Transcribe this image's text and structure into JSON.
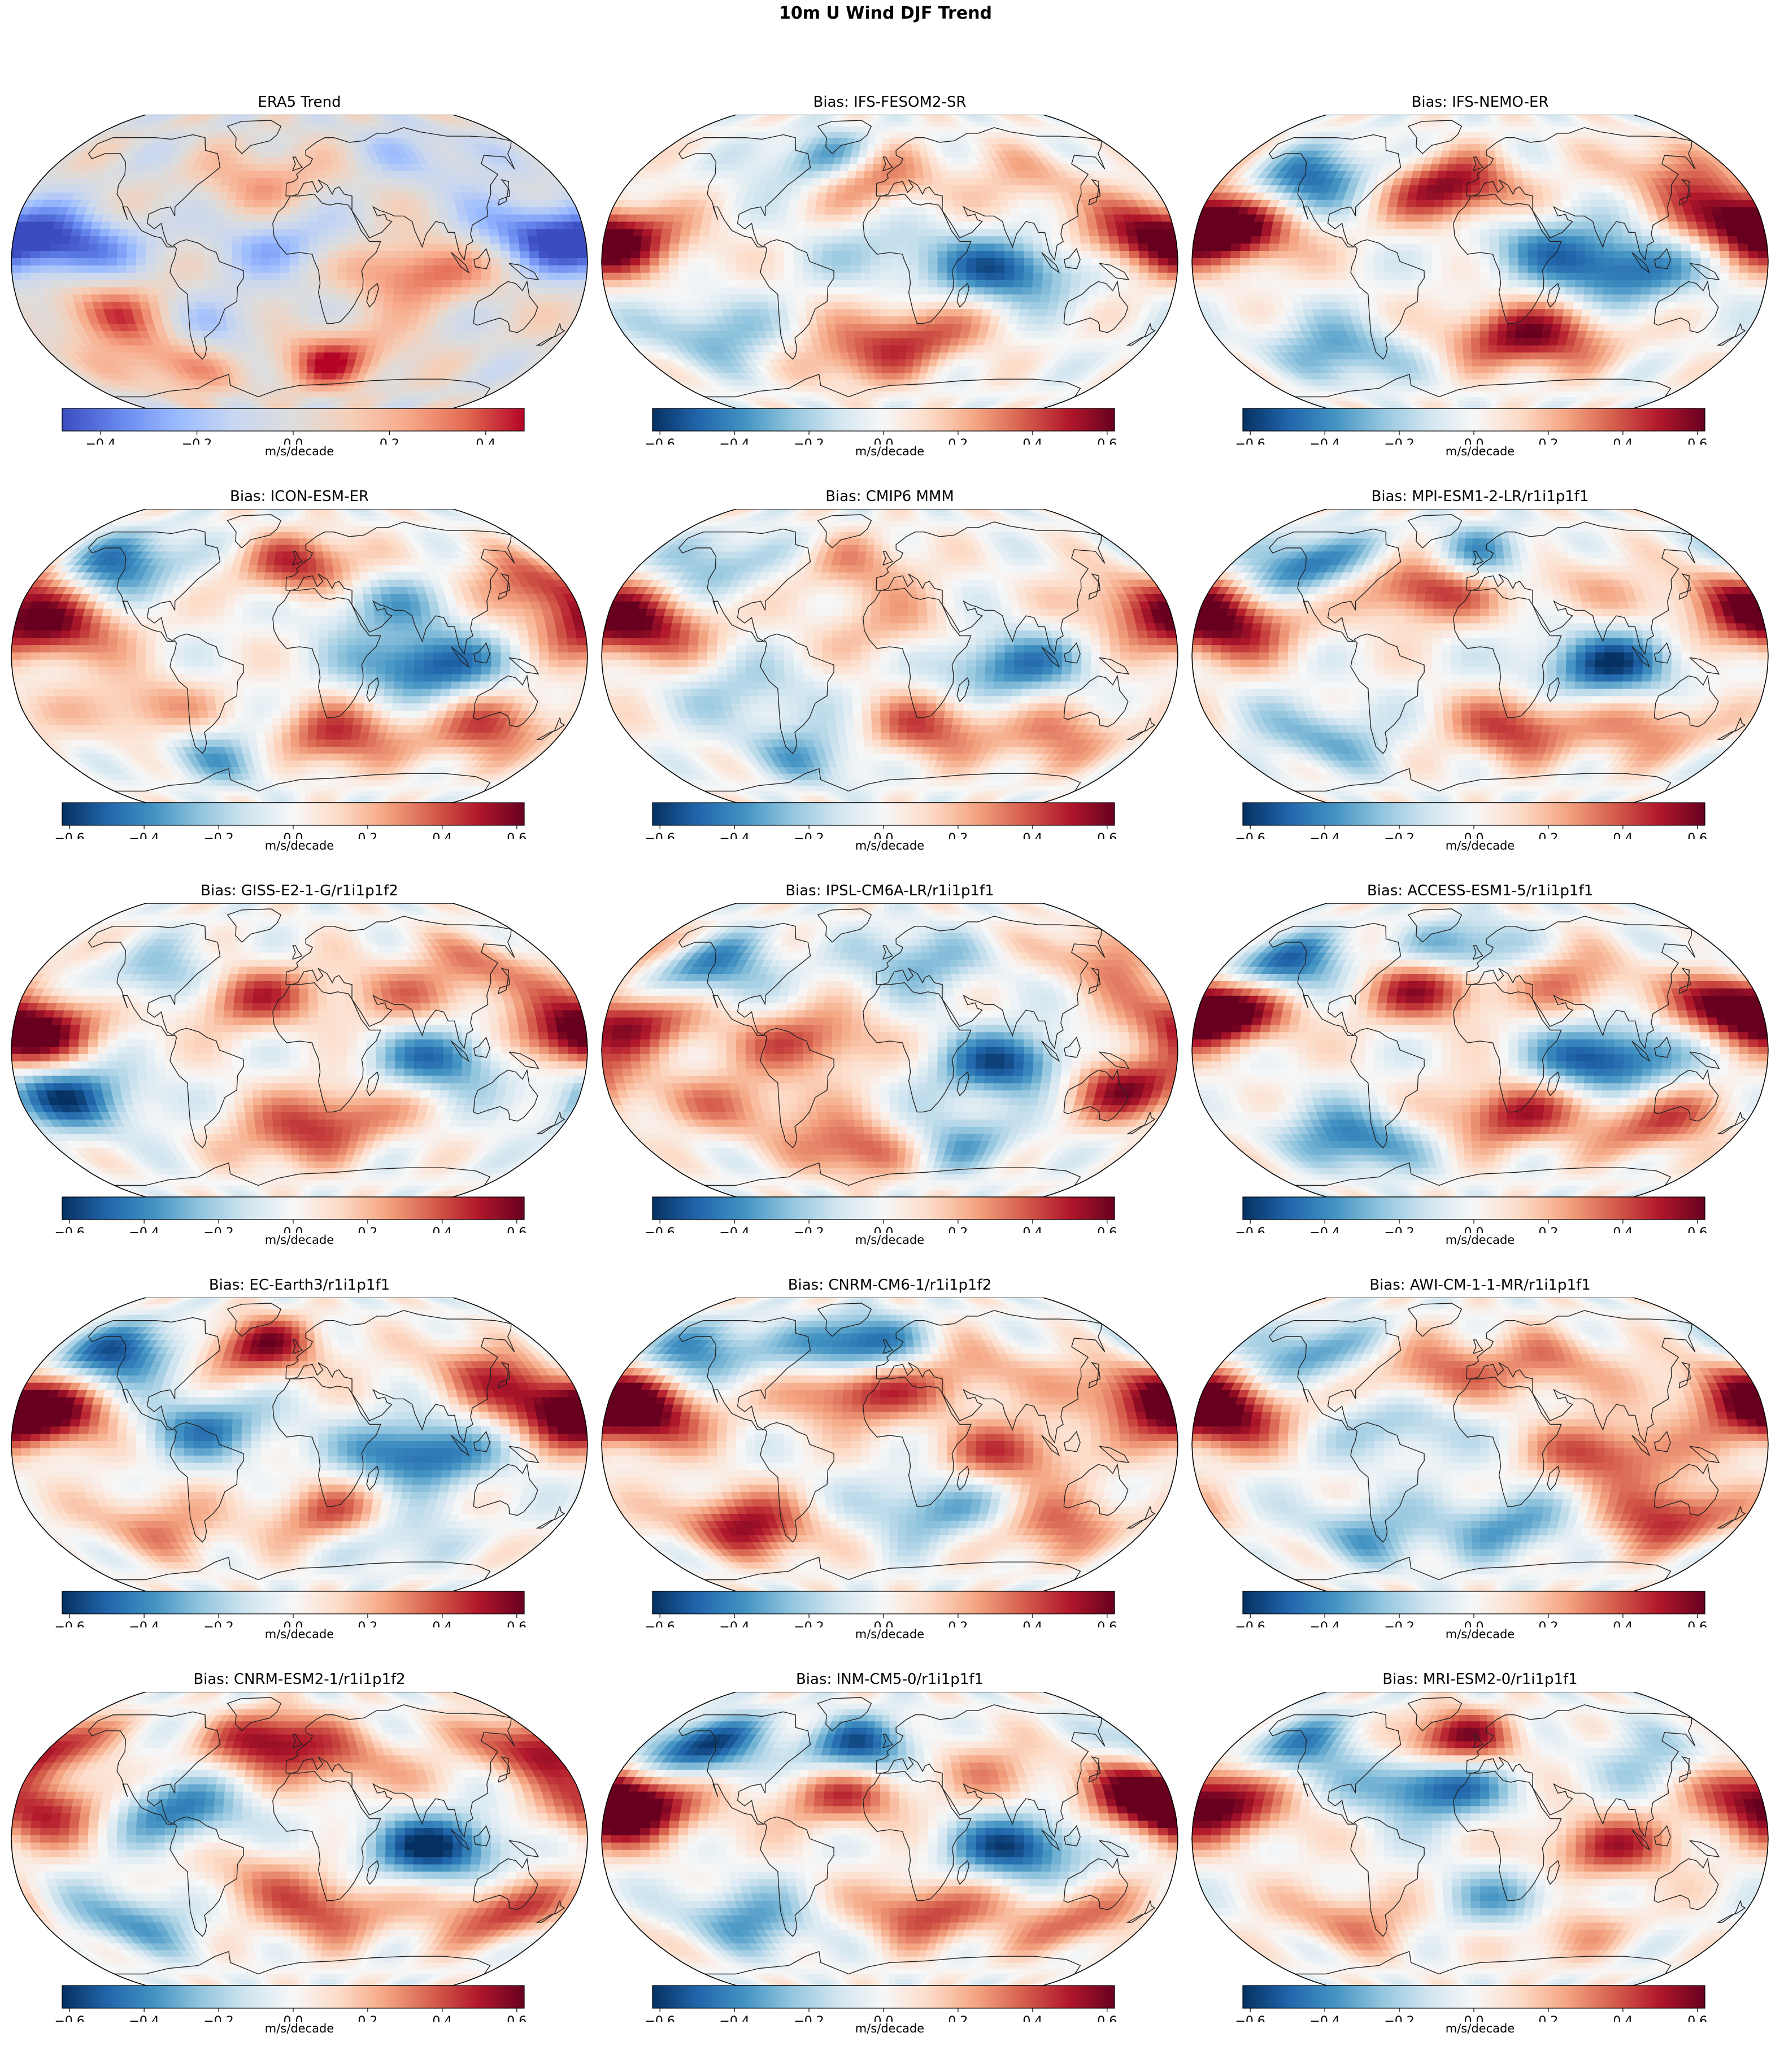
{
  "figure": {
    "title": "10m U Wind DJF Trend"
  },
  "colormaps": {
    "coolwarm": [
      "#3b4cc0",
      "#6788ee",
      "#9abbff",
      "#c9d7f0",
      "#dddddd",
      "#f6cfb8",
      "#f7a889",
      "#e26952",
      "#b40426"
    ],
    "RdBu_r": [
      "#053061",
      "#2166ac",
      "#4393c3",
      "#92c5de",
      "#d1e5f0",
      "#f7f7f7",
      "#fddbc7",
      "#f4a582",
      "#d6604d",
      "#b2182b",
      "#67001f"
    ]
  },
  "chart_data": [
    {
      "type": "heatmap",
      "title": "ERA5 Trend",
      "cmap": "coolwarm",
      "range": [
        -0.48,
        0.48
      ],
      "ticks": [
        -0.4,
        -0.2,
        0.0,
        0.2,
        0.4
      ],
      "tick_labels": [
        "−0.4",
        "−0.2",
        "0.0",
        "0.2",
        "0.4"
      ],
      "colorbar_label": "m/s/decade",
      "projection": "Robinson",
      "coastlines": true,
      "blobs": [
        [
          -150,
          8,
          -0.45
        ],
        [
          155,
          15,
          -0.42
        ],
        [
          -120,
          -28,
          0.35
        ],
        [
          25,
          -55,
          0.42
        ],
        [
          -100,
          -58,
          0.3
        ],
        [
          75,
          -5,
          0.4
        ],
        [
          -25,
          45,
          0.25
        ],
        [
          -10,
          10,
          -0.22
        ],
        [
          100,
          60,
          -0.18
        ],
        [
          -60,
          -35,
          -0.2
        ]
      ]
    },
    {
      "type": "heatmap",
      "title": "Bias: IFS-FESOM2-SR",
      "cmap": "RdBu_r",
      "range": [
        -0.62,
        0.62
      ],
      "ticks": [
        -0.6,
        -0.4,
        -0.2,
        0.0,
        0.2,
        0.4,
        0.6
      ],
      "tick_labels": [
        "−0.6",
        "−0.4",
        "−0.2",
        "0.0",
        "0.2",
        "0.4",
        "0.6"
      ],
      "colorbar_label": "m/s/decade",
      "projection": "Robinson",
      "coastlines": true,
      "blobs": [
        [
          -20,
          48,
          0.55
        ],
        [
          -45,
          55,
          -0.55
        ],
        [
          -170,
          10,
          0.5
        ],
        [
          75,
          -5,
          -0.5
        ],
        [
          20,
          -40,
          0.4
        ],
        [
          160,
          15,
          0.35
        ],
        [
          -120,
          -40,
          -0.3
        ],
        [
          -30,
          -55,
          0.3
        ],
        [
          100,
          45,
          0.2
        ],
        [
          0,
          5,
          -0.2
        ]
      ]
    },
    {
      "type": "heatmap",
      "title": "Bias: IFS-NEMO-ER",
      "cmap": "RdBu_r",
      "range": [
        -0.62,
        0.62
      ],
      "ticks": [
        -0.6,
        -0.4,
        -0.2,
        0.0,
        0.2,
        0.4,
        0.6
      ],
      "tick_labels": [
        "−0.6",
        "−0.4",
        "−0.2",
        "0.0",
        "0.2",
        "0.4",
        "0.6"
      ],
      "colorbar_label": "m/s/decade",
      "projection": "Robinson",
      "coastlines": true,
      "blobs": [
        [
          -160,
          15,
          0.62
        ],
        [
          -20,
          40,
          0.6
        ],
        [
          -120,
          45,
          -0.5
        ],
        [
          170,
          25,
          0.5
        ],
        [
          90,
          -5,
          -0.5
        ],
        [
          20,
          -40,
          0.45
        ],
        [
          140,
          50,
          0.3
        ],
        [
          -100,
          -50,
          -0.35
        ],
        [
          40,
          10,
          -0.3
        ],
        [
          60,
          -45,
          0.25
        ]
      ]
    },
    {
      "type": "heatmap",
      "title": "Bias: ICON-ESM-ER",
      "cmap": "RdBu_r",
      "range": [
        -0.62,
        0.62
      ],
      "ticks": [
        -0.6,
        -0.4,
        -0.2,
        0.0,
        0.2,
        0.4,
        0.6
      ],
      "tick_labels": [
        "−0.6",
        "−0.4",
        "−0.2",
        "0.0",
        "0.2",
        "0.4",
        "0.6"
      ],
      "colorbar_label": "m/s/decade",
      "projection": "Robinson",
      "coastlines": true,
      "blobs": [
        [
          -160,
          15,
          0.6
        ],
        [
          -135,
          50,
          -0.55
        ],
        [
          80,
          -5,
          -0.55
        ],
        [
          5,
          50,
          0.5
        ],
        [
          170,
          40,
          0.5
        ],
        [
          25,
          -45,
          0.45
        ],
        [
          130,
          -40,
          0.4
        ],
        [
          -100,
          -30,
          0.3
        ],
        [
          50,
          30,
          -0.3
        ],
        [
          -60,
          -55,
          -0.3
        ]
      ]
    },
    {
      "type": "heatmap",
      "title": "Bias: CMIP6 MMM",
      "cmap": "RdBu_r",
      "range": [
        -0.62,
        0.62
      ],
      "ticks": [
        -0.6,
        -0.4,
        -0.2,
        0.0,
        0.2,
        0.4,
        0.6
      ],
      "tick_labels": [
        "−0.6",
        "−0.4",
        "−0.2",
        "0.0",
        "0.2",
        "0.4",
        "0.6"
      ],
      "colorbar_label": "m/s/decade",
      "projection": "Robinson",
      "coastlines": true,
      "blobs": [
        [
          -160,
          15,
          0.55
        ],
        [
          75,
          -5,
          -0.45
        ],
        [
          25,
          -40,
          0.4
        ],
        [
          165,
          30,
          0.35
        ],
        [
          -130,
          50,
          -0.3
        ],
        [
          -20,
          50,
          0.25
        ],
        [
          -60,
          -55,
          -0.3
        ],
        [
          120,
          -45,
          0.3
        ],
        [
          0,
          15,
          0.2
        ],
        [
          -90,
          -20,
          -0.2
        ]
      ]
    },
    {
      "type": "heatmap",
      "title": "Bias: MPI-ESM1-2-LR/r1i1p1f1",
      "cmap": "RdBu_r",
      "range": [
        -0.62,
        0.62
      ],
      "ticks": [
        -0.6,
        -0.4,
        -0.2,
        0.0,
        0.2,
        0.4,
        0.6
      ],
      "tick_labels": [
        "−0.6",
        "−0.4",
        "−0.2",
        "0.0",
        "0.2",
        "0.4",
        "0.6"
      ],
      "colorbar_label": "m/s/decade",
      "projection": "Robinson",
      "coastlines": true,
      "blobs": [
        [
          -160,
          15,
          0.5
        ],
        [
          -35,
          38,
          0.55
        ],
        [
          -130,
          50,
          -0.5
        ],
        [
          80,
          -5,
          -0.55
        ],
        [
          25,
          -40,
          0.45
        ],
        [
          170,
          30,
          0.45
        ],
        [
          0,
          55,
          -0.4
        ],
        [
          -110,
          -45,
          -0.3
        ],
        [
          120,
          -40,
          0.3
        ],
        [
          60,
          40,
          0.2
        ]
      ]
    },
    {
      "type": "heatmap",
      "title": "Bias: GISS-E2-1-G/r1i1p1f2",
      "cmap": "RdBu_r",
      "range": [
        -0.62,
        0.62
      ],
      "ticks": [
        -0.6,
        -0.4,
        -0.2,
        0.0,
        0.2,
        0.4,
        0.6
      ],
      "tick_labels": [
        "−0.6",
        "−0.4",
        "−0.2",
        "0.0",
        "0.2",
        "0.4",
        "0.6"
      ],
      "colorbar_label": "m/s/decade",
      "projection": "Robinson",
      "coastlines": true,
      "blobs": [
        [
          -150,
          -25,
          -0.55
        ],
        [
          90,
          -5,
          -0.45
        ],
        [
          175,
          5,
          0.5
        ],
        [
          -35,
          30,
          0.45
        ],
        [
          -165,
          15,
          0.4
        ],
        [
          30,
          -35,
          0.35
        ],
        [
          -90,
          40,
          -0.3
        ],
        [
          130,
          45,
          0.3
        ],
        [
          -10,
          -50,
          0.3
        ],
        [
          60,
          30,
          0.25
        ]
      ]
    },
    {
      "type": "heatmap",
      "title": "Bias: IPSL-CM6A-LR/r1i1p1f1",
      "cmap": "RdBu_r",
      "range": [
        -0.62,
        0.62
      ],
      "ticks": [
        -0.6,
        -0.4,
        -0.2,
        0.0,
        0.2,
        0.4,
        0.6
      ],
      "tick_labels": [
        "−0.6",
        "−0.4",
        "−0.2",
        "0.0",
        "0.2",
        "0.4",
        "0.6"
      ],
      "colorbar_label": "m/s/decade",
      "projection": "Robinson",
      "coastlines": true,
      "blobs": [
        [
          -165,
          15,
          0.55
        ],
        [
          75,
          -8,
          -0.55
        ],
        [
          150,
          -20,
          0.55
        ],
        [
          -50,
          5,
          0.4
        ],
        [
          -130,
          45,
          -0.45
        ],
        [
          -25,
          -55,
          0.45
        ],
        [
          20,
          50,
          -0.3
        ],
        [
          160,
          50,
          0.35
        ],
        [
          -100,
          -30,
          0.3
        ],
        [
          50,
          -50,
          -0.3
        ]
      ]
    },
    {
      "type": "heatmap",
      "title": "Bias: ACCESS-ESM1-5/r1i1p1f1",
      "cmap": "RdBu_r",
      "range": [
        -0.62,
        0.62
      ],
      "ticks": [
        -0.6,
        -0.4,
        -0.2,
        0.0,
        0.2,
        0.4,
        0.6
      ],
      "tick_labels": [
        "−0.6",
        "−0.4",
        "−0.2",
        "0.0",
        "0.2",
        "0.4",
        "0.6"
      ],
      "colorbar_label": "m/s/decade",
      "projection": "Robinson",
      "coastlines": true,
      "blobs": [
        [
          -165,
          20,
          0.6
        ],
        [
          -35,
          35,
          0.55
        ],
        [
          -140,
          45,
          -0.55
        ],
        [
          80,
          -5,
          -0.6
        ],
        [
          20,
          -35,
          0.5
        ],
        [
          170,
          25,
          0.55
        ],
        [
          -10,
          55,
          -0.45
        ],
        [
          -90,
          -50,
          -0.45
        ],
        [
          120,
          -40,
          0.4
        ],
        [
          60,
          40,
          0.3
        ]
      ]
    },
    {
      "type": "heatmap",
      "title": "Bias: EC-Earth3/r1i1p1f1",
      "cmap": "RdBu_r",
      "range": [
        -0.62,
        0.62
      ],
      "ticks": [
        -0.6,
        -0.4,
        -0.2,
        0.0,
        0.2,
        0.4,
        0.6
      ],
      "tick_labels": [
        "−0.6",
        "−0.4",
        "−0.2",
        "0.0",
        "0.2",
        "0.4",
        "0.6"
      ],
      "colorbar_label": "m/s/decade",
      "projection": "Robinson",
      "coastlines": true,
      "blobs": [
        [
          -160,
          15,
          0.55
        ],
        [
          -130,
          50,
          -0.55
        ],
        [
          -30,
          55,
          0.55
        ],
        [
          75,
          -5,
          -0.55
        ],
        [
          25,
          -40,
          0.45
        ],
        [
          170,
          20,
          0.45
        ],
        [
          -60,
          10,
          -0.4
        ],
        [
          130,
          40,
          0.35
        ],
        [
          -100,
          -45,
          0.3
        ],
        [
          60,
          -50,
          -0.3
        ]
      ]
    },
    {
      "type": "heatmap",
      "title": "Bias: CNRM-CM6-1/r1i1p1f2",
      "cmap": "RdBu_r",
      "range": [
        -0.62,
        0.62
      ],
      "ticks": [
        -0.6,
        -0.4,
        -0.2,
        0.0,
        0.2,
        0.4,
        0.6
      ],
      "tick_labels": [
        "−0.6",
        "−0.4",
        "−0.2",
        "0.0",
        "0.2",
        "0.4",
        "0.6"
      ],
      "colorbar_label": "m/s/decade",
      "projection": "Robinson",
      "coastlines": true,
      "blobs": [
        [
          -160,
          15,
          0.62
        ],
        [
          -25,
          55,
          -0.62
        ],
        [
          -20,
          30,
          0.55
        ],
        [
          -100,
          -45,
          0.55
        ],
        [
          75,
          -5,
          0.4
        ],
        [
          170,
          30,
          0.5
        ],
        [
          -140,
          50,
          -0.45
        ],
        [
          30,
          -35,
          -0.35
        ],
        [
          120,
          -45,
          0.35
        ],
        [
          60,
          40,
          0.25
        ]
      ]
    },
    {
      "type": "heatmap",
      "title": "Bias: AWI-CM-1-1-MR/r1i1p1f1",
      "cmap": "RdBu_r",
      "range": [
        -0.62,
        0.62
      ],
      "ticks": [
        -0.6,
        -0.4,
        -0.2,
        0.0,
        0.2,
        0.4,
        0.6
      ],
      "tick_labels": [
        "−0.6",
        "−0.4",
        "−0.2",
        "0.0",
        "0.2",
        "0.4",
        "0.6"
      ],
      "colorbar_label": "m/s/decade",
      "projection": "Robinson",
      "coastlines": true,
      "blobs": [
        [
          -165,
          15,
          0.6
        ],
        [
          -130,
          50,
          -0.4
        ],
        [
          80,
          -5,
          0.45
        ],
        [
          130,
          -40,
          0.5
        ],
        [
          -30,
          40,
          0.35
        ],
        [
          20,
          -45,
          -0.35
        ],
        [
          170,
          30,
          0.4
        ],
        [
          -80,
          -50,
          -0.3
        ],
        [
          50,
          45,
          0.3
        ],
        [
          -50,
          10,
          -0.25
        ]
      ]
    },
    {
      "type": "heatmap",
      "title": "Bias: CNRM-ESM2-1/r1i1p1f2",
      "cmap": "RdBu_r",
      "range": [
        -0.62,
        0.62
      ],
      "ticks": [
        -0.6,
        -0.4,
        -0.2,
        0.0,
        0.2,
        0.4,
        0.6
      ],
      "tick_labels": [
        "−0.6",
        "−0.4",
        "−0.2",
        "0.0",
        "0.2",
        "0.4",
        "0.6"
      ],
      "colorbar_label": "m/s/decade",
      "projection": "Robinson",
      "coastlines": true,
      "blobs": [
        [
          -20,
          55,
          0.6
        ],
        [
          85,
          -5,
          -0.6
        ],
        [
          -160,
          15,
          0.5
        ],
        [
          170,
          50,
          0.55
        ],
        [
          -80,
          15,
          -0.45
        ],
        [
          20,
          -40,
          0.4
        ],
        [
          -120,
          -45,
          -0.35
        ],
        [
          140,
          -40,
          0.45
        ],
        [
          40,
          40,
          0.25
        ],
        [
          -30,
          -20,
          0.2
        ]
      ]
    },
    {
      "type": "heatmap",
      "title": "Bias: INM-CM5-0/r1i1p1f1",
      "cmap": "RdBu_r",
      "range": [
        -0.62,
        0.62
      ],
      "ticks": [
        -0.6,
        -0.4,
        -0.2,
        0.0,
        0.2,
        0.4,
        0.6
      ],
      "tick_labels": [
        "−0.6",
        "−0.4",
        "−0.2",
        "0.0",
        "0.2",
        "0.4",
        "0.6"
      ],
      "colorbar_label": "m/s/decade",
      "projection": "Robinson",
      "coastlines": true,
      "blobs": [
        [
          -165,
          15,
          0.6
        ],
        [
          -140,
          50,
          -0.6
        ],
        [
          -20,
          50,
          -0.55
        ],
        [
          80,
          -5,
          -0.55
        ],
        [
          170,
          25,
          0.6
        ],
        [
          -30,
          25,
          0.45
        ],
        [
          25,
          -40,
          0.45
        ],
        [
          -100,
          -45,
          -0.35
        ],
        [
          130,
          -45,
          0.35
        ],
        [
          60,
          40,
          0.25
        ]
      ]
    },
    {
      "type": "heatmap",
      "title": "Bias: MRI-ESM2-0/r1i1p1f1",
      "cmap": "RdBu_r",
      "range": [
        -0.62,
        0.62
      ],
      "ticks": [
        -0.6,
        -0.4,
        -0.2,
        0.0,
        0.2,
        0.4,
        0.6
      ],
      "tick_labels": [
        "−0.6",
        "−0.4",
        "−0.2",
        "0.0",
        "0.2",
        "0.4",
        "0.6"
      ],
      "colorbar_label": "m/s/decade",
      "projection": "Robinson",
      "coastlines": true,
      "blobs": [
        [
          -20,
          55,
          0.62
        ],
        [
          -30,
          30,
          -0.6
        ],
        [
          -165,
          15,
          0.5
        ],
        [
          80,
          -5,
          0.45
        ],
        [
          -130,
          50,
          -0.4
        ],
        [
          25,
          -35,
          -0.35
        ],
        [
          170,
          30,
          0.45
        ],
        [
          -90,
          -45,
          0.3
        ],
        [
          130,
          40,
          -0.3
        ],
        [
          60,
          -50,
          0.3
        ]
      ]
    }
  ]
}
